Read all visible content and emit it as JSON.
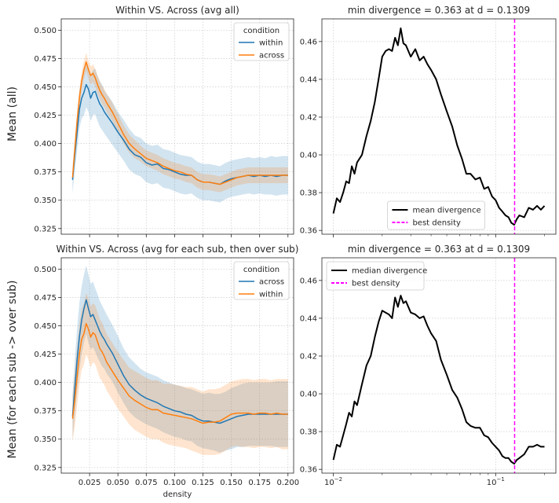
{
  "row_labels": [
    "Mean (all)",
    "Mean (for each sub -> over sub)"
  ],
  "chart_data": [
    {
      "type": "line",
      "title": "Within VS. Across (avg all)",
      "xlabel": "",
      "ylabel": "",
      "xlim": [
        0.0,
        0.205
      ],
      "ylim": [
        0.32,
        0.51
      ],
      "yticks": [
        "0.325",
        "0.350",
        "0.375",
        "0.400",
        "0.425",
        "0.450",
        "0.475",
        "0.500"
      ],
      "ytick_values": [
        0.325,
        0.35,
        0.375,
        0.4,
        0.425,
        0.45,
        0.475,
        0.5
      ],
      "xtick_values": [
        0.025,
        0.05,
        0.075,
        0.1,
        0.125,
        0.15,
        0.175,
        0.2
      ],
      "xticks": [],
      "grid": true,
      "legend_title": "condition",
      "legend_position": "top-right",
      "series": [
        {
          "name": "within",
          "color": "#1f77b4",
          "x": [
            0.01,
            0.012,
            0.014,
            0.016,
            0.018,
            0.02,
            0.022,
            0.024,
            0.026,
            0.028,
            0.03,
            0.032,
            0.034,
            0.036,
            0.038,
            0.04,
            0.045,
            0.05,
            0.055,
            0.06,
            0.065,
            0.07,
            0.075,
            0.08,
            0.085,
            0.09,
            0.095,
            0.1,
            0.105,
            0.11,
            0.115,
            0.12,
            0.125,
            0.13,
            0.135,
            0.14,
            0.145,
            0.15,
            0.155,
            0.16,
            0.165,
            0.17,
            0.175,
            0.18,
            0.185,
            0.19,
            0.195,
            0.2
          ],
          "y": [
            0.368,
            0.39,
            0.41,
            0.43,
            0.44,
            0.445,
            0.452,
            0.448,
            0.44,
            0.445,
            0.446,
            0.44,
            0.435,
            0.432,
            0.428,
            0.425,
            0.418,
            0.41,
            0.403,
            0.395,
            0.39,
            0.388,
            0.383,
            0.381,
            0.382,
            0.378,
            0.377,
            0.375,
            0.373,
            0.372,
            0.372,
            0.368,
            0.366,
            0.366,
            0.365,
            0.364,
            0.367,
            0.369,
            0.37,
            0.371,
            0.372,
            0.371,
            0.372,
            0.371,
            0.372,
            0.371,
            0.372,
            0.372
          ],
          "band": [
            0.012,
            0.014,
            0.016,
            0.017,
            0.018,
            0.02,
            0.02,
            0.02,
            0.02,
            0.02,
            0.02,
            0.02,
            0.02,
            0.02,
            0.019,
            0.019,
            0.019,
            0.018,
            0.018,
            0.018,
            0.017,
            0.017,
            0.017,
            0.017,
            0.017,
            0.017,
            0.017,
            0.017,
            0.017,
            0.017,
            0.016,
            0.016,
            0.016,
            0.016,
            0.016,
            0.016,
            0.016,
            0.016,
            0.016,
            0.016,
            0.016,
            0.016,
            0.016,
            0.016,
            0.017,
            0.017,
            0.017,
            0.017
          ]
        },
        {
          "name": "across",
          "color": "#ff7f0e",
          "x": [
            0.01,
            0.012,
            0.014,
            0.016,
            0.018,
            0.02,
            0.022,
            0.024,
            0.026,
            0.028,
            0.03,
            0.032,
            0.034,
            0.036,
            0.038,
            0.04,
            0.045,
            0.05,
            0.055,
            0.06,
            0.065,
            0.07,
            0.075,
            0.08,
            0.085,
            0.09,
            0.095,
            0.1,
            0.105,
            0.11,
            0.115,
            0.12,
            0.125,
            0.13,
            0.135,
            0.14,
            0.145,
            0.15,
            0.155,
            0.16,
            0.165,
            0.17,
            0.175,
            0.18,
            0.185,
            0.19,
            0.195,
            0.2
          ],
          "y": [
            0.37,
            0.395,
            0.42,
            0.44,
            0.455,
            0.465,
            0.472,
            0.465,
            0.46,
            0.462,
            0.458,
            0.452,
            0.447,
            0.443,
            0.44,
            0.436,
            0.428,
            0.418,
            0.408,
            0.4,
            0.395,
            0.391,
            0.387,
            0.385,
            0.383,
            0.38,
            0.378,
            0.376,
            0.375,
            0.373,
            0.372,
            0.368,
            0.366,
            0.366,
            0.365,
            0.364,
            0.366,
            0.368,
            0.37,
            0.371,
            0.372,
            0.372,
            0.372,
            0.372,
            0.372,
            0.372,
            0.372,
            0.372
          ],
          "band": [
            0.004,
            0.006,
            0.007,
            0.008,
            0.008,
            0.008,
            0.008,
            0.008,
            0.008,
            0.008,
            0.008,
            0.008,
            0.008,
            0.008,
            0.008,
            0.008,
            0.008,
            0.008,
            0.008,
            0.008,
            0.008,
            0.007,
            0.007,
            0.007,
            0.007,
            0.007,
            0.007,
            0.007,
            0.007,
            0.007,
            0.007,
            0.007,
            0.007,
            0.007,
            0.007,
            0.007,
            0.007,
            0.007,
            0.007,
            0.007,
            0.007,
            0.007,
            0.007,
            0.007,
            0.007,
            0.007,
            0.007,
            0.007
          ]
        }
      ]
    },
    {
      "type": "line",
      "title": "min divergence = 0.363 at d = 0.1309",
      "xscale": "log",
      "xlim": [
        0.0085,
        0.235
      ],
      "ylim": [
        0.358,
        0.472
      ],
      "yticks": [
        "0.36",
        "0.38",
        "0.40",
        "0.42",
        "0.44",
        "0.46"
      ],
      "ytick_values": [
        0.36,
        0.38,
        0.4,
        0.42,
        0.44,
        0.46
      ],
      "xtick_values": [
        0.01,
        0.1
      ],
      "xticks": [],
      "grid": true,
      "legend_position": "lower-center",
      "vline": {
        "x": 0.1309,
        "name": "best density",
        "color": "#ff00ff"
      },
      "series": [
        {
          "name": "mean divergence",
          "color": "#000000",
          "x": [
            0.01,
            0.0105,
            0.011,
            0.0115,
            0.012,
            0.0125,
            0.013,
            0.0135,
            0.014,
            0.015,
            0.016,
            0.017,
            0.018,
            0.019,
            0.02,
            0.021,
            0.022,
            0.023,
            0.024,
            0.025,
            0.026,
            0.027,
            0.028,
            0.03,
            0.032,
            0.034,
            0.036,
            0.038,
            0.04,
            0.043,
            0.046,
            0.05,
            0.054,
            0.058,
            0.062,
            0.066,
            0.07,
            0.075,
            0.08,
            0.085,
            0.09,
            0.095,
            0.1,
            0.105,
            0.11,
            0.115,
            0.12,
            0.125,
            0.13,
            0.135,
            0.14,
            0.15,
            0.16,
            0.17,
            0.18,
            0.19,
            0.2
          ],
          "y": [
            0.369,
            0.377,
            0.375,
            0.38,
            0.386,
            0.385,
            0.394,
            0.39,
            0.396,
            0.4,
            0.41,
            0.418,
            0.428,
            0.44,
            0.452,
            0.455,
            0.456,
            0.455,
            0.462,
            0.458,
            0.467,
            0.459,
            0.458,
            0.452,
            0.456,
            0.45,
            0.452,
            0.448,
            0.445,
            0.44,
            0.432,
            0.423,
            0.415,
            0.405,
            0.398,
            0.39,
            0.39,
            0.387,
            0.388,
            0.382,
            0.383,
            0.378,
            0.376,
            0.372,
            0.37,
            0.368,
            0.367,
            0.364,
            0.363,
            0.366,
            0.368,
            0.367,
            0.372,
            0.371,
            0.373,
            0.371,
            0.373
          ]
        }
      ]
    },
    {
      "type": "line",
      "title": "Within VS. Across (avg for each sub, then over sub)",
      "xlabel": "density",
      "ylabel": "",
      "xlim": [
        0.0,
        0.205
      ],
      "ylim": [
        0.32,
        0.51
      ],
      "yticks": [
        "0.325",
        "0.350",
        "0.375",
        "0.400",
        "0.425",
        "0.450",
        "0.475",
        "0.500"
      ],
      "ytick_values": [
        0.325,
        0.35,
        0.375,
        0.4,
        0.425,
        0.45,
        0.475,
        0.5
      ],
      "xticks": [
        "0.025",
        "0.050",
        "0.075",
        "0.100",
        "0.125",
        "0.150",
        "0.175",
        "0.200"
      ],
      "xtick_values": [
        0.025,
        0.05,
        0.075,
        0.1,
        0.125,
        0.15,
        0.175,
        0.2
      ],
      "grid": true,
      "legend_title": "condition",
      "legend_position": "top-right",
      "series": [
        {
          "name": "across",
          "color": "#1f77b4",
          "x": [
            0.01,
            0.012,
            0.014,
            0.016,
            0.018,
            0.02,
            0.022,
            0.024,
            0.026,
            0.028,
            0.03,
            0.032,
            0.034,
            0.036,
            0.038,
            0.04,
            0.045,
            0.05,
            0.055,
            0.06,
            0.065,
            0.07,
            0.075,
            0.08,
            0.085,
            0.09,
            0.095,
            0.1,
            0.105,
            0.11,
            0.115,
            0.12,
            0.125,
            0.13,
            0.135,
            0.14,
            0.145,
            0.15,
            0.155,
            0.16,
            0.165,
            0.17,
            0.175,
            0.18,
            0.185,
            0.19,
            0.195,
            0.2
          ],
          "y": [
            0.37,
            0.395,
            0.42,
            0.44,
            0.455,
            0.465,
            0.473,
            0.465,
            0.458,
            0.46,
            0.455,
            0.45,
            0.445,
            0.441,
            0.438,
            0.434,
            0.426,
            0.416,
            0.406,
            0.398,
            0.393,
            0.389,
            0.386,
            0.384,
            0.382,
            0.379,
            0.377,
            0.375,
            0.374,
            0.372,
            0.371,
            0.368,
            0.366,
            0.366,
            0.365,
            0.364,
            0.366,
            0.368,
            0.37,
            0.371,
            0.372,
            0.372,
            0.372,
            0.372,
            0.372,
            0.372,
            0.372,
            0.372
          ],
          "band": [
            0.02,
            0.025,
            0.028,
            0.03,
            0.03,
            0.03,
            0.03,
            0.03,
            0.029,
            0.029,
            0.028,
            0.028,
            0.027,
            0.027,
            0.026,
            0.026,
            0.025,
            0.025,
            0.024,
            0.024,
            0.024,
            0.023,
            0.023,
            0.023,
            0.023,
            0.023,
            0.023,
            0.023,
            0.023,
            0.023,
            0.023,
            0.024,
            0.024,
            0.025,
            0.025,
            0.026,
            0.026,
            0.027,
            0.027,
            0.028,
            0.028,
            0.028,
            0.028,
            0.028,
            0.028,
            0.029,
            0.029,
            0.029
          ]
        },
        {
          "name": "within",
          "color": "#ff7f0e",
          "x": [
            0.01,
            0.012,
            0.014,
            0.016,
            0.018,
            0.02,
            0.022,
            0.024,
            0.026,
            0.028,
            0.03,
            0.032,
            0.034,
            0.036,
            0.038,
            0.04,
            0.045,
            0.05,
            0.055,
            0.06,
            0.065,
            0.07,
            0.075,
            0.08,
            0.085,
            0.09,
            0.095,
            0.1,
            0.105,
            0.11,
            0.115,
            0.12,
            0.125,
            0.13,
            0.135,
            0.14,
            0.145,
            0.15,
            0.155,
            0.16,
            0.165,
            0.17,
            0.175,
            0.18,
            0.185,
            0.19,
            0.195,
            0.2
          ],
          "y": [
            0.368,
            0.385,
            0.405,
            0.425,
            0.438,
            0.443,
            0.452,
            0.447,
            0.44,
            0.444,
            0.442,
            0.436,
            0.43,
            0.427,
            0.423,
            0.418,
            0.41,
            0.402,
            0.395,
            0.388,
            0.384,
            0.381,
            0.378,
            0.376,
            0.376,
            0.373,
            0.372,
            0.371,
            0.37,
            0.369,
            0.368,
            0.366,
            0.364,
            0.365,
            0.365,
            0.366,
            0.369,
            0.372,
            0.373,
            0.373,
            0.373,
            0.372,
            0.373,
            0.373,
            0.372,
            0.373,
            0.372,
            0.372
          ],
          "band": [
            0.02,
            0.024,
            0.026,
            0.027,
            0.027,
            0.027,
            0.027,
            0.027,
            0.027,
            0.026,
            0.026,
            0.026,
            0.026,
            0.026,
            0.025,
            0.025,
            0.025,
            0.025,
            0.025,
            0.025,
            0.026,
            0.026,
            0.026,
            0.026,
            0.026,
            0.026,
            0.027,
            0.027,
            0.027,
            0.027,
            0.028,
            0.028,
            0.028,
            0.029,
            0.029,
            0.029,
            0.029,
            0.029,
            0.029,
            0.03,
            0.03,
            0.03,
            0.03,
            0.03,
            0.03,
            0.03,
            0.031,
            0.031
          ]
        }
      ]
    },
    {
      "type": "line",
      "title": "min divergence = 0.363 at d = 0.1309",
      "xscale": "log",
      "xlim": [
        0.0085,
        0.235
      ],
      "ylim": [
        0.358,
        0.472
      ],
      "yticks": [
        "0.36",
        "0.38",
        "0.40",
        "0.42",
        "0.44",
        "0.46"
      ],
      "ytick_values": [
        0.36,
        0.38,
        0.4,
        0.42,
        0.44,
        0.46
      ],
      "xticks": [
        "10",
        "10"
      ],
      "xtick_exponents": [
        "−2",
        "−1"
      ],
      "xtick_values": [
        0.01,
        0.1
      ],
      "grid": true,
      "legend_position": "top-left",
      "vline": {
        "x": 0.1309,
        "name": "best density",
        "color": "#ff00ff"
      },
      "series": [
        {
          "name": "median divergence",
          "color": "#000000",
          "x": [
            0.01,
            0.0105,
            0.011,
            0.0115,
            0.012,
            0.0125,
            0.013,
            0.0135,
            0.014,
            0.015,
            0.016,
            0.017,
            0.018,
            0.019,
            0.02,
            0.021,
            0.022,
            0.023,
            0.024,
            0.025,
            0.026,
            0.027,
            0.028,
            0.03,
            0.032,
            0.034,
            0.036,
            0.038,
            0.04,
            0.043,
            0.046,
            0.05,
            0.054,
            0.058,
            0.062,
            0.066,
            0.07,
            0.075,
            0.08,
            0.085,
            0.09,
            0.095,
            0.1,
            0.105,
            0.11,
            0.115,
            0.12,
            0.125,
            0.13,
            0.135,
            0.14,
            0.15,
            0.16,
            0.17,
            0.18,
            0.19,
            0.2
          ],
          "y": [
            0.365,
            0.373,
            0.372,
            0.378,
            0.384,
            0.39,
            0.388,
            0.396,
            0.394,
            0.405,
            0.415,
            0.42,
            0.43,
            0.438,
            0.444,
            0.443,
            0.442,
            0.44,
            0.451,
            0.446,
            0.452,
            0.448,
            0.449,
            0.443,
            0.442,
            0.44,
            0.441,
            0.436,
            0.432,
            0.428,
            0.418,
            0.41,
            0.402,
            0.398,
            0.392,
            0.385,
            0.383,
            0.382,
            0.382,
            0.378,
            0.377,
            0.374,
            0.372,
            0.37,
            0.367,
            0.366,
            0.366,
            0.364,
            0.363,
            0.365,
            0.366,
            0.368,
            0.372,
            0.372,
            0.373,
            0.372,
            0.372
          ]
        }
      ]
    }
  ]
}
